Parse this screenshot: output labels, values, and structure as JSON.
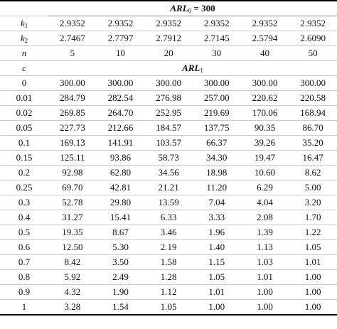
{
  "table": {
    "header": {
      "main": "ARL",
      "sub": "0",
      "rest": " = 300"
    },
    "param_rows": [
      {
        "label": {
          "main": "k",
          "sub": "1"
        },
        "cells": [
          "2.9352",
          "2.9352",
          "2.9352",
          "2.9352",
          "2.9352",
          "2.9352"
        ]
      },
      {
        "label": {
          "main": "k",
          "sub": "2"
        },
        "cells": [
          "2.7467",
          "2.7797",
          "2.7912",
          "2.7145",
          "2.5794",
          "2.6090"
        ]
      },
      {
        "label": {
          "main": "n"
        },
        "cells": [
          "5",
          "10",
          "20",
          "30",
          "40",
          "50"
        ]
      }
    ],
    "subheader": {
      "label": "c",
      "main": "ARL",
      "sub": "1"
    },
    "rows": [
      [
        "0",
        "300.00",
        "300.00",
        "300.00",
        "300.00",
        "300.00",
        "300.00"
      ],
      [
        "0.01",
        "284.79",
        "282.54",
        "276.98",
        "257.00",
        "220.62",
        "220.58"
      ],
      [
        "0.02",
        "269.85",
        "264.70",
        "252.95",
        "219.69",
        "170.06",
        "168.94"
      ],
      [
        "0.05",
        "227.73",
        "212.66",
        "184.57",
        "137.75",
        "90.35",
        "86.70"
      ],
      [
        "0.1",
        "169.13",
        "141.91",
        "103.57",
        "66.37",
        "39.26",
        "35.20"
      ],
      [
        "0.15",
        "125.11",
        "93.86",
        "58.73",
        "34.30",
        "19.47",
        "16.47"
      ],
      [
        "0.2",
        "92.98",
        "62.80",
        "34.56",
        "18.98",
        "10.60",
        "8.62"
      ],
      [
        "0.25",
        "69.70",
        "42.81",
        "21.21",
        "11.20",
        "6.29",
        "5.00"
      ],
      [
        "0.3",
        "52.78",
        "29.80",
        "13.59",
        "7.04",
        "4.04",
        "3.20"
      ],
      [
        "0.4",
        "31.27",
        "15.41",
        "6.33",
        "3.33",
        "2.08",
        "1.70"
      ],
      [
        "0.5",
        "19.35",
        "8.67",
        "3.46",
        "1.96",
        "1.39",
        "1.22"
      ],
      [
        "0.6",
        "12.50",
        "5.30",
        "2.19",
        "1.40",
        "1.13",
        "1.05"
      ],
      [
        "0.7",
        "8.42",
        "3.50",
        "1.58",
        "1.15",
        "1.03",
        "1.01"
      ],
      [
        "0.8",
        "5.92",
        "2.49",
        "1.28",
        "1.05",
        "1.01",
        "1.00"
      ],
      [
        "0.9",
        "4.32",
        "1.90",
        "1.12",
        "1.01",
        "1.00",
        "1.00"
      ],
      [
        "1",
        "3.28",
        "1.54",
        "1.05",
        "1.00",
        "1.00",
        "1.00"
      ]
    ]
  }
}
